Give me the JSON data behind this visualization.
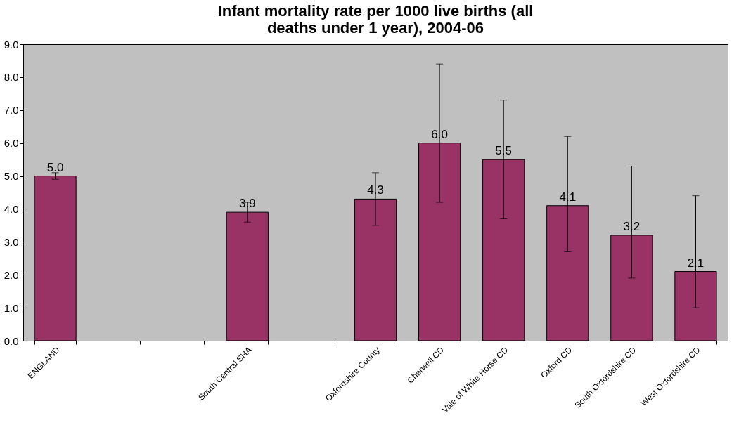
{
  "chart_data": {
    "type": "bar",
    "title": "Infant mortality rate per 1000 live births (all deaths under 1 year), 2004-06",
    "categories": [
      "ENGLAND",
      null,
      null,
      "South Central SHA",
      null,
      "Oxfordshire County",
      "Cherwell CD",
      "Vale of White Horse CD",
      "Oxford CD",
      "South Oxfordshire CD",
      "West Oxfordshire CD"
    ],
    "series": [
      {
        "color": "#993366",
        "values": [
          5.0,
          null,
          null,
          3.9,
          null,
          4.3,
          6.0,
          5.5,
          4.1,
          3.2,
          2.1
        ],
        "errors": [
          [
            4.9,
            5.1
          ],
          null,
          null,
          [
            3.6,
            4.2
          ],
          null,
          [
            3.5,
            5.1
          ],
          [
            4.2,
            8.4
          ],
          [
            3.7,
            7.3
          ],
          [
            2.7,
            6.2
          ],
          [
            1.9,
            5.3
          ],
          [
            1.0,
            4.4
          ]
        ]
      }
    ],
    "value_labels": [
      "5.0",
      null,
      null,
      "3.9",
      null,
      "4.3",
      "6.0",
      "5.5",
      "4.1",
      "3.2",
      "2.1"
    ],
    "ylim": [
      0,
      9
    ],
    "yticks": [
      {
        "value": 0,
        "label": "0.0"
      },
      {
        "value": 1,
        "label": "1.0"
      },
      {
        "value": 2,
        "label": "2.0"
      },
      {
        "value": 3,
        "label": "3.0"
      },
      {
        "value": 4,
        "label": "4.0"
      },
      {
        "value": 5,
        "label": "5.0"
      },
      {
        "value": 6,
        "label": "6.0"
      },
      {
        "value": 7,
        "label": "7.0"
      },
      {
        "value": 8,
        "label": "8.0"
      },
      {
        "value": 9,
        "label": "9.0"
      }
    ],
    "grid": false
  }
}
